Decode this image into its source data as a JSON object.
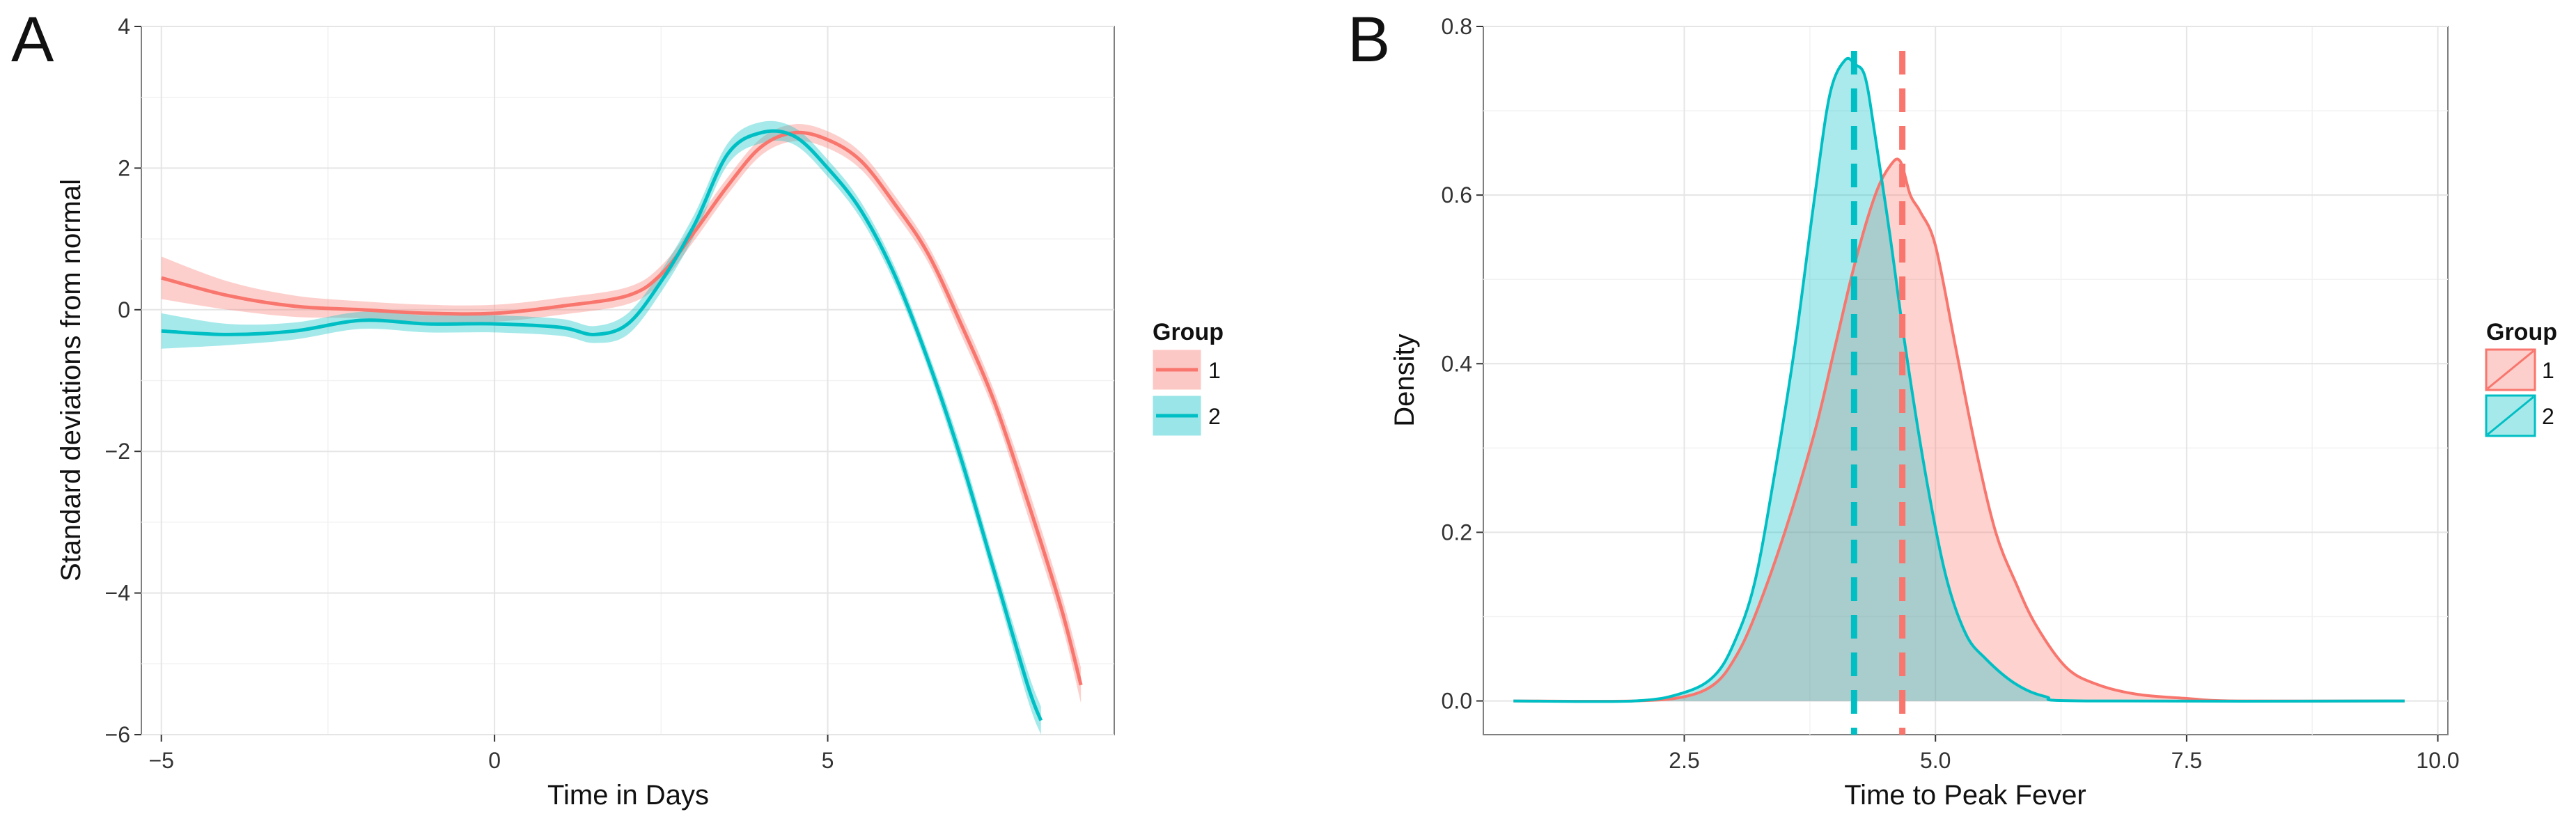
{
  "chart_data": [
    {
      "panel": "A",
      "type": "line",
      "xlabel": "Time in Days",
      "ylabel": "Standard deviations from normal",
      "xlim": [
        -5.3,
        9.3
      ],
      "ylim": [
        -6,
        4
      ],
      "xticks": [
        -5,
        0,
        5
      ],
      "yticks": [
        -6,
        -4,
        -2,
        0,
        2,
        4
      ],
      "grid": true,
      "legend": {
        "title": "Group",
        "position": "right",
        "entries": [
          "1",
          "2"
        ]
      },
      "series": [
        {
          "name": "1",
          "color": "#F8766D",
          "x": [
            -5,
            -4,
            -3,
            -2,
            -1,
            0,
            1,
            2,
            2.5,
            3,
            3.5,
            4,
            4.5,
            5,
            5.5,
            6,
            6.5,
            7,
            7.5,
            8,
            8.5,
            8.8
          ],
          "y": [
            0.45,
            0.2,
            0.05,
            0.0,
            -0.05,
            -0.05,
            0.05,
            0.2,
            0.5,
            1.1,
            1.75,
            2.3,
            2.5,
            2.4,
            2.1,
            1.5,
            0.8,
            -0.2,
            -1.3,
            -2.7,
            -4.2,
            -5.3
          ],
          "band": [
            0.3,
            0.2,
            0.15,
            0.12,
            0.12,
            0.12,
            0.12,
            0.12,
            0.12,
            0.12,
            0.12,
            0.12,
            0.12,
            0.12,
            0.12,
            0.12,
            0.12,
            0.15,
            0.15,
            0.2,
            0.2,
            0.25
          ]
        },
        {
          "name": "2",
          "color": "#00BFC4",
          "x": [
            -5,
            -4,
            -3,
            -2,
            -1,
            0,
            1,
            1.5,
            2,
            2.5,
            3,
            3.5,
            4,
            4.5,
            5,
            5.5,
            6,
            6.5,
            7,
            7.5,
            8,
            8.2
          ],
          "y": [
            -0.3,
            -0.35,
            -0.3,
            -0.15,
            -0.2,
            -0.2,
            -0.25,
            -0.35,
            -0.2,
            0.4,
            1.2,
            2.2,
            2.5,
            2.45,
            2.0,
            1.4,
            0.5,
            -0.7,
            -2.1,
            -3.7,
            -5.3,
            -5.8
          ],
          "band": [
            0.25,
            0.15,
            0.12,
            0.12,
            0.12,
            0.12,
            0.12,
            0.12,
            0.15,
            0.15,
            0.15,
            0.15,
            0.15,
            0.12,
            0.12,
            0.12,
            0.12,
            0.12,
            0.15,
            0.15,
            0.2,
            0.2
          ]
        }
      ]
    },
    {
      "panel": "B",
      "type": "area",
      "xlabel": "Time to Peak Fever",
      "ylabel": "Density",
      "xlim": [
        0.5,
        10.1
      ],
      "ylim": [
        -0.04,
        0.8
      ],
      "xticks": [
        2.5,
        5.0,
        7.5,
        10.0
      ],
      "yticks": [
        0.0,
        0.2,
        0.4,
        0.6,
        0.8
      ],
      "grid": true,
      "legend": {
        "title": "Group",
        "position": "right",
        "entries": [
          "1",
          "2"
        ]
      },
      "series": [
        {
          "name": "1",
          "color": "#F8766D",
          "mean": 4.67,
          "x": [
            0.8,
            2.0,
            2.5,
            2.8,
            3.0,
            3.2,
            3.5,
            3.8,
            4.0,
            4.2,
            4.4,
            4.55,
            4.65,
            4.75,
            4.85,
            5.0,
            5.2,
            5.4,
            5.6,
            5.8,
            6.0,
            6.3,
            6.6,
            7.0,
            7.5,
            8.0,
            9.67
          ],
          "y": [
            0.0,
            0.0,
            0.005,
            0.02,
            0.05,
            0.1,
            0.2,
            0.32,
            0.42,
            0.52,
            0.6,
            0.635,
            0.64,
            0.6,
            0.58,
            0.54,
            0.42,
            0.3,
            0.2,
            0.14,
            0.09,
            0.04,
            0.02,
            0.008,
            0.003,
            0.0,
            0.0
          ]
        },
        {
          "name": "2",
          "color": "#00BFC4",
          "mean": 4.19,
          "x": [
            0.8,
            2.0,
            2.5,
            2.8,
            3.0,
            3.2,
            3.4,
            3.6,
            3.8,
            3.95,
            4.1,
            4.2,
            4.3,
            4.4,
            4.55,
            4.7,
            4.9,
            5.1,
            5.3,
            5.5,
            5.8,
            6.1,
            6.5,
            9.67
          ],
          "y": [
            0.0,
            0.0,
            0.01,
            0.03,
            0.07,
            0.14,
            0.27,
            0.42,
            0.6,
            0.72,
            0.76,
            0.755,
            0.74,
            0.67,
            0.55,
            0.42,
            0.27,
            0.15,
            0.08,
            0.05,
            0.02,
            0.005,
            0.0,
            0.0
          ]
        }
      ]
    }
  ]
}
